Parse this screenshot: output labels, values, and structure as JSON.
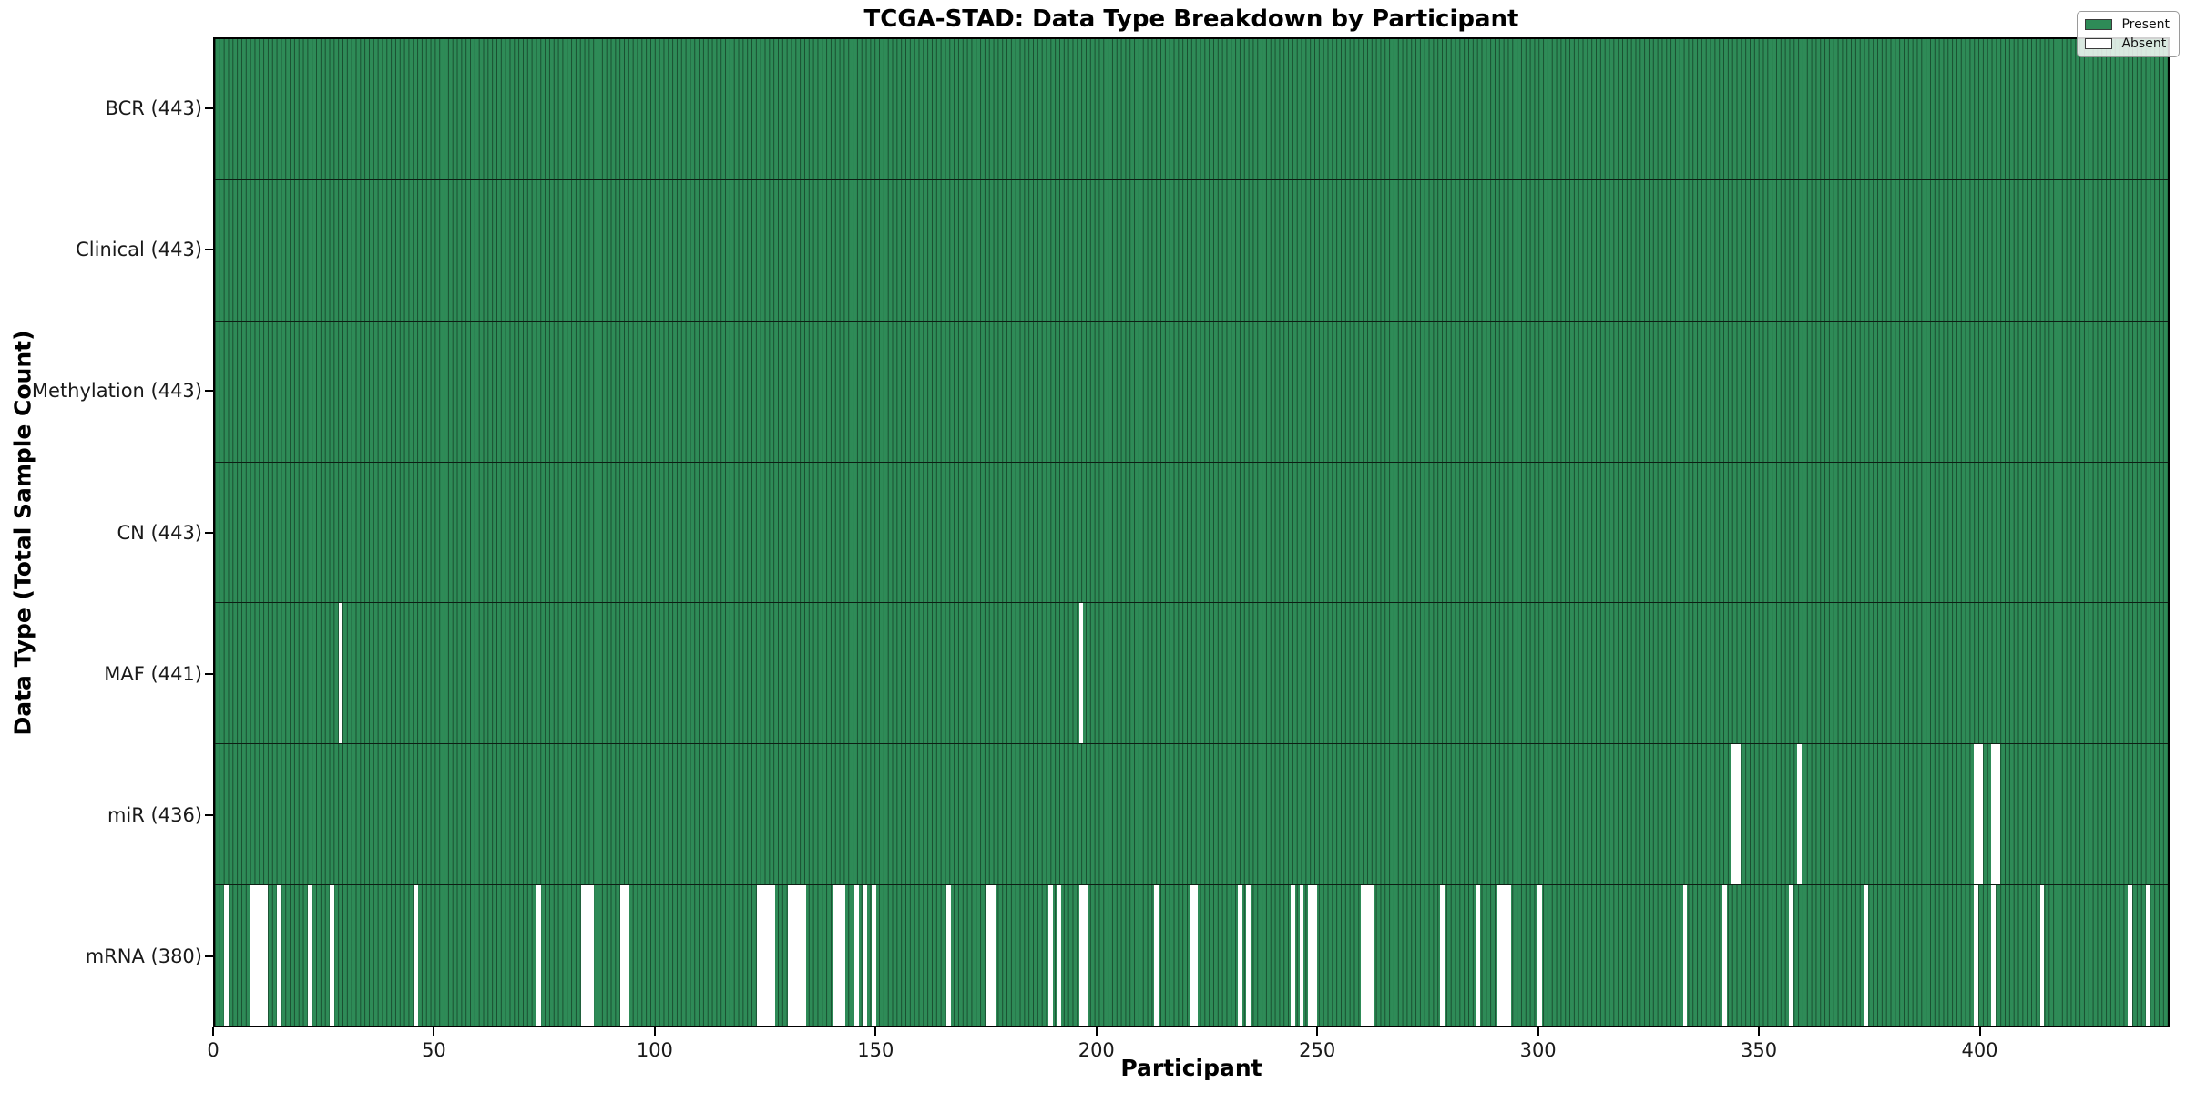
{
  "chart_data": {
    "type": "heatmap",
    "title": "TCGA-STAD: Data Type Breakdown by Participant",
    "xlabel": "Participant",
    "ylabel": "Data Type (Total Sample Count)",
    "x_ticks": [
      0,
      50,
      100,
      150,
      200,
      250,
      300,
      350,
      400
    ],
    "x_range": [
      0,
      443
    ],
    "n_participants": 443,
    "grid": false,
    "colors": {
      "present": "#2e8b57",
      "absent": "#ffffff",
      "bar_edge": "#0d1f14"
    },
    "legend": {
      "position": "upper right",
      "entries": [
        {
          "label": "Present",
          "color": "#2e8b57"
        },
        {
          "label": "Absent",
          "color": "#ffffff"
        }
      ]
    },
    "rows": [
      {
        "name": "bcr",
        "label": "BCR (443)",
        "total": 443,
        "absent": []
      },
      {
        "name": "clinical",
        "label": "Clinical (443)",
        "total": 443,
        "absent": []
      },
      {
        "name": "methylation",
        "label": "Methylation (443)",
        "total": 443,
        "absent": []
      },
      {
        "name": "cn",
        "label": "CN (443)",
        "total": 443,
        "absent": []
      },
      {
        "name": "maf",
        "label": "MAF (441)",
        "total": 441,
        "absent": [
          28,
          196
        ]
      },
      {
        "name": "mir",
        "label": "miR (436)",
        "total": 436,
        "absent": [
          344,
          345,
          359,
          399,
          400,
          403,
          404
        ]
      },
      {
        "name": "mrna",
        "label": "mRNA (380)",
        "total": 380,
        "absent": [
          2,
          8,
          9,
          10,
          11,
          14,
          21,
          26,
          45,
          73,
          83,
          84,
          85,
          92,
          93,
          123,
          124,
          125,
          126,
          130,
          131,
          132,
          133,
          140,
          141,
          142,
          145,
          147,
          149,
          166,
          175,
          176,
          189,
          191,
          196,
          197,
          213,
          221,
          222,
          232,
          234,
          244,
          246,
          248,
          249,
          260,
          261,
          262,
          278,
          286,
          291,
          292,
          293,
          300,
          333,
          342,
          357,
          374,
          399,
          403,
          414,
          434,
          438
        ]
      }
    ]
  }
}
